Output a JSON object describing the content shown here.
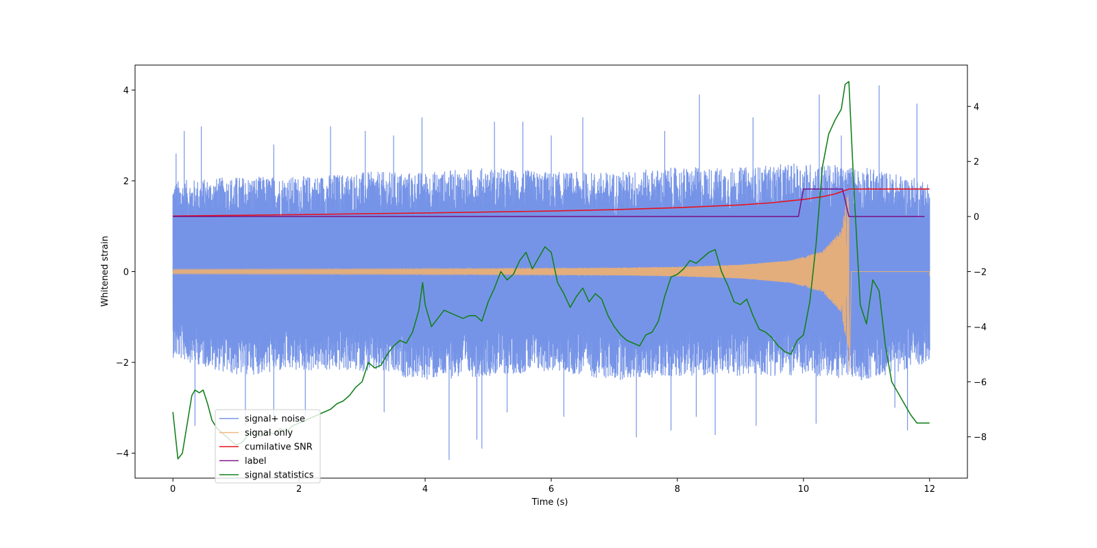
{
  "chart_data": {
    "type": "line",
    "title": "",
    "xlabel": "Time (s)",
    "ylabel": "Whitened strain",
    "ylabel_right": "",
    "xlim": [
      -0.6,
      12.6
    ],
    "ylim": [
      -4.55,
      4.55
    ],
    "ylim_right": [
      -9.5,
      5.5
    ],
    "x_ticks": [
      0,
      2,
      4,
      6,
      8,
      10,
      12
    ],
    "y_ticks": [
      -4,
      -2,
      0,
      2,
      4
    ],
    "y_ticks_right": [
      -8,
      -6,
      -4,
      -2,
      0,
      2,
      4
    ],
    "grid": false,
    "legend_position": "lower-left",
    "colors": {
      "signal_noise": "#6f8ee6",
      "signal_only": "#f0b070",
      "cumulative_snr": "#e8101c",
      "label": "#7a1688",
      "signal_statistics": "#12801a"
    },
    "series": [
      {
        "name": "signal+ noise",
        "axis": "left",
        "note_shape": "dense noise band approx ±1.6 with spikes to about ±3.5",
        "x_range": [
          0,
          12
        ],
        "envelope_upper": [
          [
            0,
            2.0
          ],
          [
            1,
            2.1
          ],
          [
            2,
            2.1
          ],
          [
            3,
            2.2
          ],
          [
            4,
            2.2
          ],
          [
            5,
            2.3
          ],
          [
            6,
            2.2
          ],
          [
            7,
            2.2
          ],
          [
            8,
            2.3
          ],
          [
            9,
            2.3
          ],
          [
            10,
            2.4
          ],
          [
            11,
            2.3
          ],
          [
            12,
            2.0
          ]
        ],
        "envelope_lower": [
          [
            0,
            -1.9
          ],
          [
            1,
            -2.3
          ],
          [
            2,
            -2.2
          ],
          [
            3,
            -2.2
          ],
          [
            4,
            -2.4
          ],
          [
            5,
            -2.3
          ],
          [
            6,
            -2.2
          ],
          [
            7,
            -2.4
          ],
          [
            8,
            -2.3
          ],
          [
            9,
            -2.3
          ],
          [
            10,
            -2.3
          ],
          [
            11,
            -2.4
          ],
          [
            12,
            -2.0
          ]
        ],
        "spikes": [
          [
            0.05,
            2.6
          ],
          [
            0.18,
            3.1
          ],
          [
            0.45,
            3.2
          ],
          [
            1.6,
            2.8
          ],
          [
            2.5,
            3.2
          ],
          [
            3.05,
            3.1
          ],
          [
            3.5,
            3.0
          ],
          [
            3.95,
            3.4
          ],
          [
            5.1,
            3.3
          ],
          [
            5.55,
            3.3
          ],
          [
            6.0,
            3.0
          ],
          [
            6.5,
            3.4
          ],
          [
            7.8,
            3.1
          ],
          [
            8.35,
            3.9
          ],
          [
            9.2,
            3.4
          ],
          [
            10.25,
            3.9
          ],
          [
            10.6,
            3.0
          ],
          [
            11.2,
            4.1
          ],
          [
            11.8,
            3.7
          ],
          [
            0.35,
            -3.4
          ],
          [
            1.15,
            -3.4
          ],
          [
            1.6,
            -3.3
          ],
          [
            2.1,
            -3.2
          ],
          [
            3.35,
            -3.1
          ],
          [
            4.38,
            -4.15
          ],
          [
            4.82,
            -3.7
          ],
          [
            4.9,
            -3.9
          ],
          [
            5.3,
            -3.1
          ],
          [
            6.2,
            -3.2
          ],
          [
            7.35,
            -3.65
          ],
          [
            7.9,
            -3.5
          ],
          [
            8.3,
            -3.2
          ],
          [
            8.6,
            -3.6
          ],
          [
            9.25,
            -3.4
          ],
          [
            10.2,
            -3.35
          ],
          [
            11.45,
            -3.0
          ],
          [
            11.65,
            -3.5
          ]
        ]
      },
      {
        "name": "signal only",
        "axis": "left",
        "note_shape": "chirp with growing amplitude, merger near 10.7 s",
        "x_range": [
          0,
          12
        ],
        "chirp_start": 0,
        "chirp_merger": 10.72,
        "amplitude_points": [
          [
            0,
            0.05
          ],
          [
            4,
            0.06
          ],
          [
            7,
            0.08
          ],
          [
            8,
            0.1
          ],
          [
            9,
            0.15
          ],
          [
            9.8,
            0.25
          ],
          [
            10.3,
            0.45
          ],
          [
            10.6,
            0.9
          ],
          [
            10.7,
            1.7
          ]
        ],
        "ringdown_end": 10.76,
        "baseline": 0
      },
      {
        "name": "cumilative SNR",
        "axis": "right",
        "x": [
          0,
          2,
          4,
          6,
          7,
          8,
          9,
          9.5,
          10,
          10.3,
          10.5,
          10.6,
          10.65,
          10.7,
          10.72,
          11,
          12
        ],
        "y": [
          0.02,
          0.07,
          0.13,
          0.2,
          0.25,
          0.32,
          0.42,
          0.5,
          0.62,
          0.72,
          0.82,
          0.9,
          0.94,
          0.98,
          1.0,
          1.0,
          1.0
        ]
      },
      {
        "name": "label",
        "axis": "right",
        "x": [
          0,
          9.92,
          10.0,
          10.62,
          10.72,
          11.92
        ],
        "y": [
          0,
          0,
          1,
          1,
          0,
          0
        ]
      },
      {
        "name": "signal statistics",
        "axis": "right",
        "x": [
          0,
          0.08,
          0.15,
          0.25,
          0.3,
          0.35,
          0.42,
          0.48,
          0.55,
          0.62,
          0.7,
          0.8,
          0.9,
          1.0,
          1.1,
          1.2,
          1.3,
          1.4,
          1.5,
          1.6,
          1.7,
          1.8,
          1.9,
          2.0,
          2.1,
          2.2,
          2.3,
          2.4,
          2.5,
          2.6,
          2.7,
          2.8,
          2.9,
          3.0,
          3.1,
          3.2,
          3.3,
          3.4,
          3.5,
          3.6,
          3.7,
          3.8,
          3.9,
          3.96,
          4.0,
          4.1,
          4.2,
          4.3,
          4.4,
          4.5,
          4.6,
          4.7,
          4.8,
          4.9,
          5.0,
          5.1,
          5.2,
          5.3,
          5.4,
          5.5,
          5.6,
          5.7,
          5.8,
          5.9,
          6.0,
          6.1,
          6.2,
          6.3,
          6.4,
          6.5,
          6.6,
          6.7,
          6.8,
          6.9,
          7.0,
          7.1,
          7.2,
          7.3,
          7.4,
          7.5,
          7.6,
          7.7,
          7.8,
          7.9,
          8.0,
          8.1,
          8.2,
          8.3,
          8.4,
          8.5,
          8.6,
          8.7,
          8.8,
          8.9,
          9.0,
          9.1,
          9.2,
          9.3,
          9.4,
          9.5,
          9.6,
          9.7,
          9.8,
          9.9,
          10.0,
          10.1,
          10.2,
          10.3,
          10.4,
          10.5,
          10.6,
          10.66,
          10.72,
          10.8,
          10.9,
          11.0,
          11.1,
          11.2,
          11.3,
          11.4,
          11.5,
          11.6,
          11.7,
          11.8,
          11.9,
          12.0
        ],
        "y": [
          -7.1,
          -8.8,
          -8.6,
          -7.2,
          -6.5,
          -6.3,
          -6.4,
          -6.3,
          -6.8,
          -7.4,
          -7.7,
          -7.9,
          -8.1,
          -8.3,
          -8.2,
          -7.9,
          -7.8,
          -8.0,
          -7.8,
          -7.9,
          -7.7,
          -7.8,
          -7.6,
          -7.5,
          -7.4,
          -7.3,
          -7.2,
          -7.1,
          -7.0,
          -6.8,
          -6.7,
          -6.5,
          -6.2,
          -6.0,
          -5.3,
          -5.5,
          -5.4,
          -5.0,
          -4.7,
          -4.5,
          -4.6,
          -4.2,
          -3.4,
          -2.4,
          -3.2,
          -4.0,
          -3.7,
          -3.4,
          -3.5,
          -3.6,
          -3.7,
          -3.6,
          -3.6,
          -3.8,
          -3.1,
          -2.6,
          -2.0,
          -2.3,
          -2.1,
          -1.6,
          -1.3,
          -1.9,
          -1.5,
          -1.1,
          -1.3,
          -2.4,
          -2.8,
          -3.3,
          -2.9,
          -2.6,
          -3.1,
          -2.8,
          -3.0,
          -3.6,
          -4.0,
          -4.3,
          -4.5,
          -4.6,
          -4.7,
          -4.3,
          -4.2,
          -3.8,
          -2.9,
          -2.2,
          -2.1,
          -1.9,
          -1.6,
          -1.7,
          -1.5,
          -1.3,
          -1.2,
          -2.0,
          -2.5,
          -3.1,
          -3.2,
          -3.0,
          -3.6,
          -4.1,
          -4.2,
          -4.4,
          -4.7,
          -4.9,
          -5.0,
          -4.5,
          -4.3,
          -3.1,
          -1.0,
          1.8,
          3.0,
          3.5,
          3.9,
          4.8,
          4.9,
          1.0,
          -3.2,
          -3.9,
          -2.3,
          -2.7,
          -4.7,
          -6.0,
          -6.4,
          -6.8,
          -7.2,
          -7.5,
          -7.5,
          -7.5
        ]
      }
    ],
    "legend": [
      "signal+ noise",
      "signal only",
      "cumilative SNR",
      "label",
      "signal statistics"
    ]
  }
}
